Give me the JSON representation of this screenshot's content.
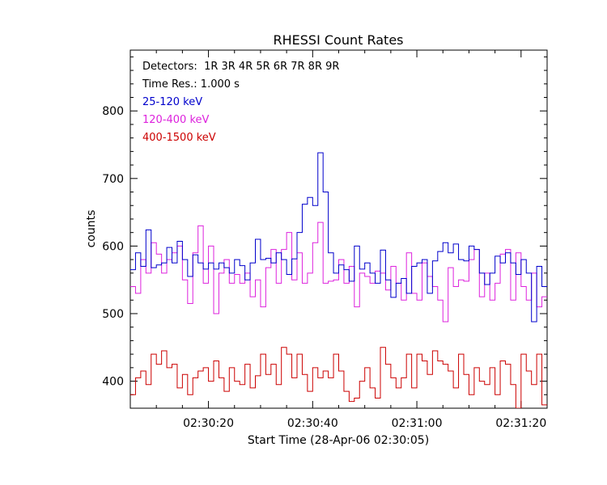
{
  "chart_data": {
    "type": "line",
    "title": "RHESSI Count Rates",
    "xlabel": "Start Time (28-Apr-06 02:30:05)",
    "ylabel": "counts",
    "ylim": [
      360,
      890
    ],
    "x_start": "02:30:05",
    "x_step_s": 1,
    "x_ticks": [
      "02:30:20",
      "02:30:40",
      "02:31:00",
      "02:31:20"
    ],
    "y_ticks": [
      400,
      500,
      600,
      700,
      800
    ],
    "legend_position": "top-left",
    "annotations": [
      "Detectors:  1R 3R 4R 5R 6R 7R 8R 9R",
      "Time Res.: 1.000 s"
    ],
    "series": [
      {
        "name": "25-120 keV",
        "color": "#0000cc",
        "values": [
          565,
          590,
          570,
          624,
          568,
          572,
          575,
          598,
          575,
          607,
          580,
          555,
          587,
          575,
          566,
          575,
          566,
          575,
          568,
          560,
          580,
          571,
          550,
          575,
          610,
          580,
          582,
          575,
          590,
          580,
          558,
          581,
          620,
          662,
          672,
          660,
          738,
          680,
          590,
          560,
          572,
          565,
          548,
          600,
          566,
          575,
          560,
          545,
          594,
          550,
          524,
          545,
          552,
          530,
          570,
          575,
          580,
          530,
          578,
          592,
          605,
          590,
          603,
          580,
          578,
          600,
          595,
          560,
          543,
          560,
          585,
          575,
          590,
          575,
          558,
          580,
          560,
          488,
          570,
          540
        ]
      },
      {
        "name": "120-400 keV",
        "color": "#dd22dd",
        "values": [
          540,
          530,
          580,
          560,
          605,
          588,
          560,
          580,
          590,
          600,
          550,
          515,
          590,
          630,
          545,
          600,
          500,
          560,
          580,
          545,
          558,
          545,
          560,
          525,
          550,
          510,
          568,
          595,
          545,
          595,
          620,
          550,
          590,
          545,
          560,
          605,
          635,
          545,
          548,
          550,
          580,
          545,
          570,
          510,
          560,
          555,
          545,
          563,
          560,
          535,
          570,
          545,
          520,
          590,
          530,
          520,
          575,
          555,
          540,
          520,
          488,
          568,
          540,
          550,
          548,
          580,
          595,
          525,
          560,
          520,
          545,
          588,
          595,
          520,
          590,
          540,
          520,
          560,
          510,
          525
        ]
      },
      {
        "name": "400-1500 keV",
        "color": "#cc0000",
        "values": [
          380,
          405,
          415,
          395,
          440,
          425,
          445,
          420,
          425,
          390,
          410,
          380,
          405,
          415,
          420,
          400,
          430,
          405,
          385,
          420,
          400,
          395,
          425,
          390,
          408,
          440,
          410,
          425,
          395,
          450,
          440,
          405,
          440,
          410,
          385,
          420,
          405,
          415,
          405,
          440,
          415,
          385,
          370,
          375,
          400,
          420,
          390,
          375,
          450,
          425,
          405,
          390,
          405,
          440,
          390,
          440,
          430,
          410,
          445,
          430,
          425,
          415,
          390,
          440,
          410,
          380,
          420,
          400,
          395,
          420,
          380,
          430,
          425,
          395,
          360,
          440,
          415,
          395,
          440,
          365
        ]
      }
    ]
  }
}
